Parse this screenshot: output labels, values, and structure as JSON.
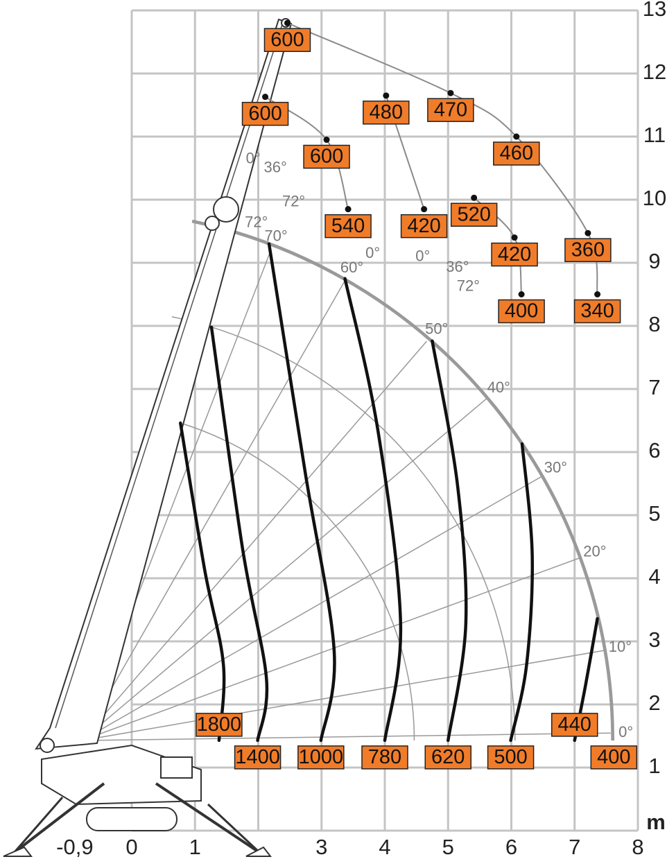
{
  "chart_data": {
    "type": "load-chart",
    "unit": "m",
    "xlim": [
      -0.9,
      8
    ],
    "ylim": [
      0,
      13
    ],
    "xticks": [
      {
        "value": -0.9,
        "label": "-0,9"
      },
      0,
      1,
      3,
      4,
      5,
      6,
      7,
      8
    ],
    "yticks": [
      1,
      2,
      3,
      4,
      5,
      6,
      7,
      8,
      9,
      10,
      11,
      12,
      13
    ],
    "grid_x": [
      0,
      1,
      2,
      3,
      4,
      5,
      6,
      7,
      8
    ],
    "grid_y": [
      0,
      1,
      2,
      3,
      4,
      5,
      6,
      7,
      8,
      9,
      10,
      11,
      12,
      13
    ],
    "curve_color": "#111111",
    "label_color": "#f07c2a",
    "grid_color": "#c4c4c4",
    "jib_color": "#8a8a8a",
    "load_curves": [
      {
        "load": 1800,
        "x": [
          0.77,
          1.15,
          1.45,
          1.38
        ],
        "y": [
          6.46,
          4.15,
          2.62,
          1.43
        ]
      },
      {
        "load": 1400,
        "x": [
          1.26,
          1.75,
          2.13,
          1.99
        ],
        "y": [
          7.98,
          4.48,
          2.4,
          1.43
        ]
      },
      {
        "load": 1000,
        "x": [
          2.17,
          2.74,
          3.2,
          2.99
        ],
        "y": [
          9.3,
          5.69,
          2.84,
          1.43
        ]
      },
      {
        "load": 780,
        "x": [
          3.37,
          3.89,
          4.25,
          4.0
        ],
        "y": [
          8.75,
          6.35,
          3.27,
          1.43
        ]
      },
      {
        "load": 620,
        "x": [
          4.75,
          5.15,
          5.28,
          5.0
        ],
        "y": [
          7.76,
          5.47,
          3.27,
          1.43
        ]
      },
      {
        "load": 500,
        "x": [
          6.17,
          6.33,
          6.24,
          5.99
        ],
        "y": [
          6.13,
          4.37,
          2.62,
          1.43
        ]
      },
      {
        "load": 440,
        "x": [
          7.36,
          7.17,
          7.0
        ],
        "y": [
          3.36,
          2.29,
          1.43
        ]
      },
      {
        "load": 400,
        "x": [
          7.62
        ],
        "y": [
          1.43
        ]
      }
    ],
    "jib_series": [
      {
        "x": [
          2.46,
          5.04,
          6.08,
          7.21,
          7.36
        ],
        "y": [
          12.8,
          11.69,
          11.0,
          9.47,
          8.5
        ],
        "loads": [
          600,
          470,
          460,
          360,
          340
        ]
      },
      {
        "x": [
          4.02,
          4.62
        ],
        "y": [
          11.65,
          9.85
        ],
        "loads": [
          480,
          420
        ]
      },
      {
        "x": [
          2.11,
          3.08,
          3.42
        ],
        "y": [
          11.63,
          10.95,
          9.85
        ],
        "loads": [
          600,
          600,
          540
        ]
      },
      {
        "x": [
          5.41,
          6.05,
          6.16
        ],
        "y": [
          10.03,
          9.4,
          8.5
        ],
        "loads": [
          520,
          420,
          400
        ]
      }
    ],
    "boom_angle_labels": [
      {
        "x": 2.28,
        "y": 9.41,
        "label": "70°"
      },
      {
        "x": 3.48,
        "y": 8.91,
        "label": "60°"
      },
      {
        "x": 4.82,
        "y": 7.94,
        "label": "50°"
      },
      {
        "x": 5.8,
        "y": 7.01,
        "label": "40°"
      },
      {
        "x": 6.7,
        "y": 5.74,
        "label": "30°"
      },
      {
        "x": 7.32,
        "y": 4.41,
        "label": "20°"
      },
      {
        "x": 7.72,
        "y": 2.9,
        "label": "10°"
      },
      {
        "x": 7.81,
        "y": 1.55,
        "label": "0°"
      }
    ],
    "jib_angle_labels": [
      {
        "x": 1.92,
        "y": 10.64,
        "label": "0°"
      },
      {
        "x": 2.27,
        "y": 10.5,
        "label": "36°"
      },
      {
        "x": 2.56,
        "y": 9.96,
        "label": "72°"
      },
      {
        "x": 1.97,
        "y": 9.63,
        "label": "72°"
      },
      {
        "x": 3.81,
        "y": 9.14,
        "label": "0°"
      },
      {
        "x": 4.6,
        "y": 9.09,
        "label": "0°"
      },
      {
        "x": 5.15,
        "y": 8.92,
        "label": "36°"
      },
      {
        "x": 5.32,
        "y": 8.62,
        "label": "72°"
      }
    ]
  }
}
